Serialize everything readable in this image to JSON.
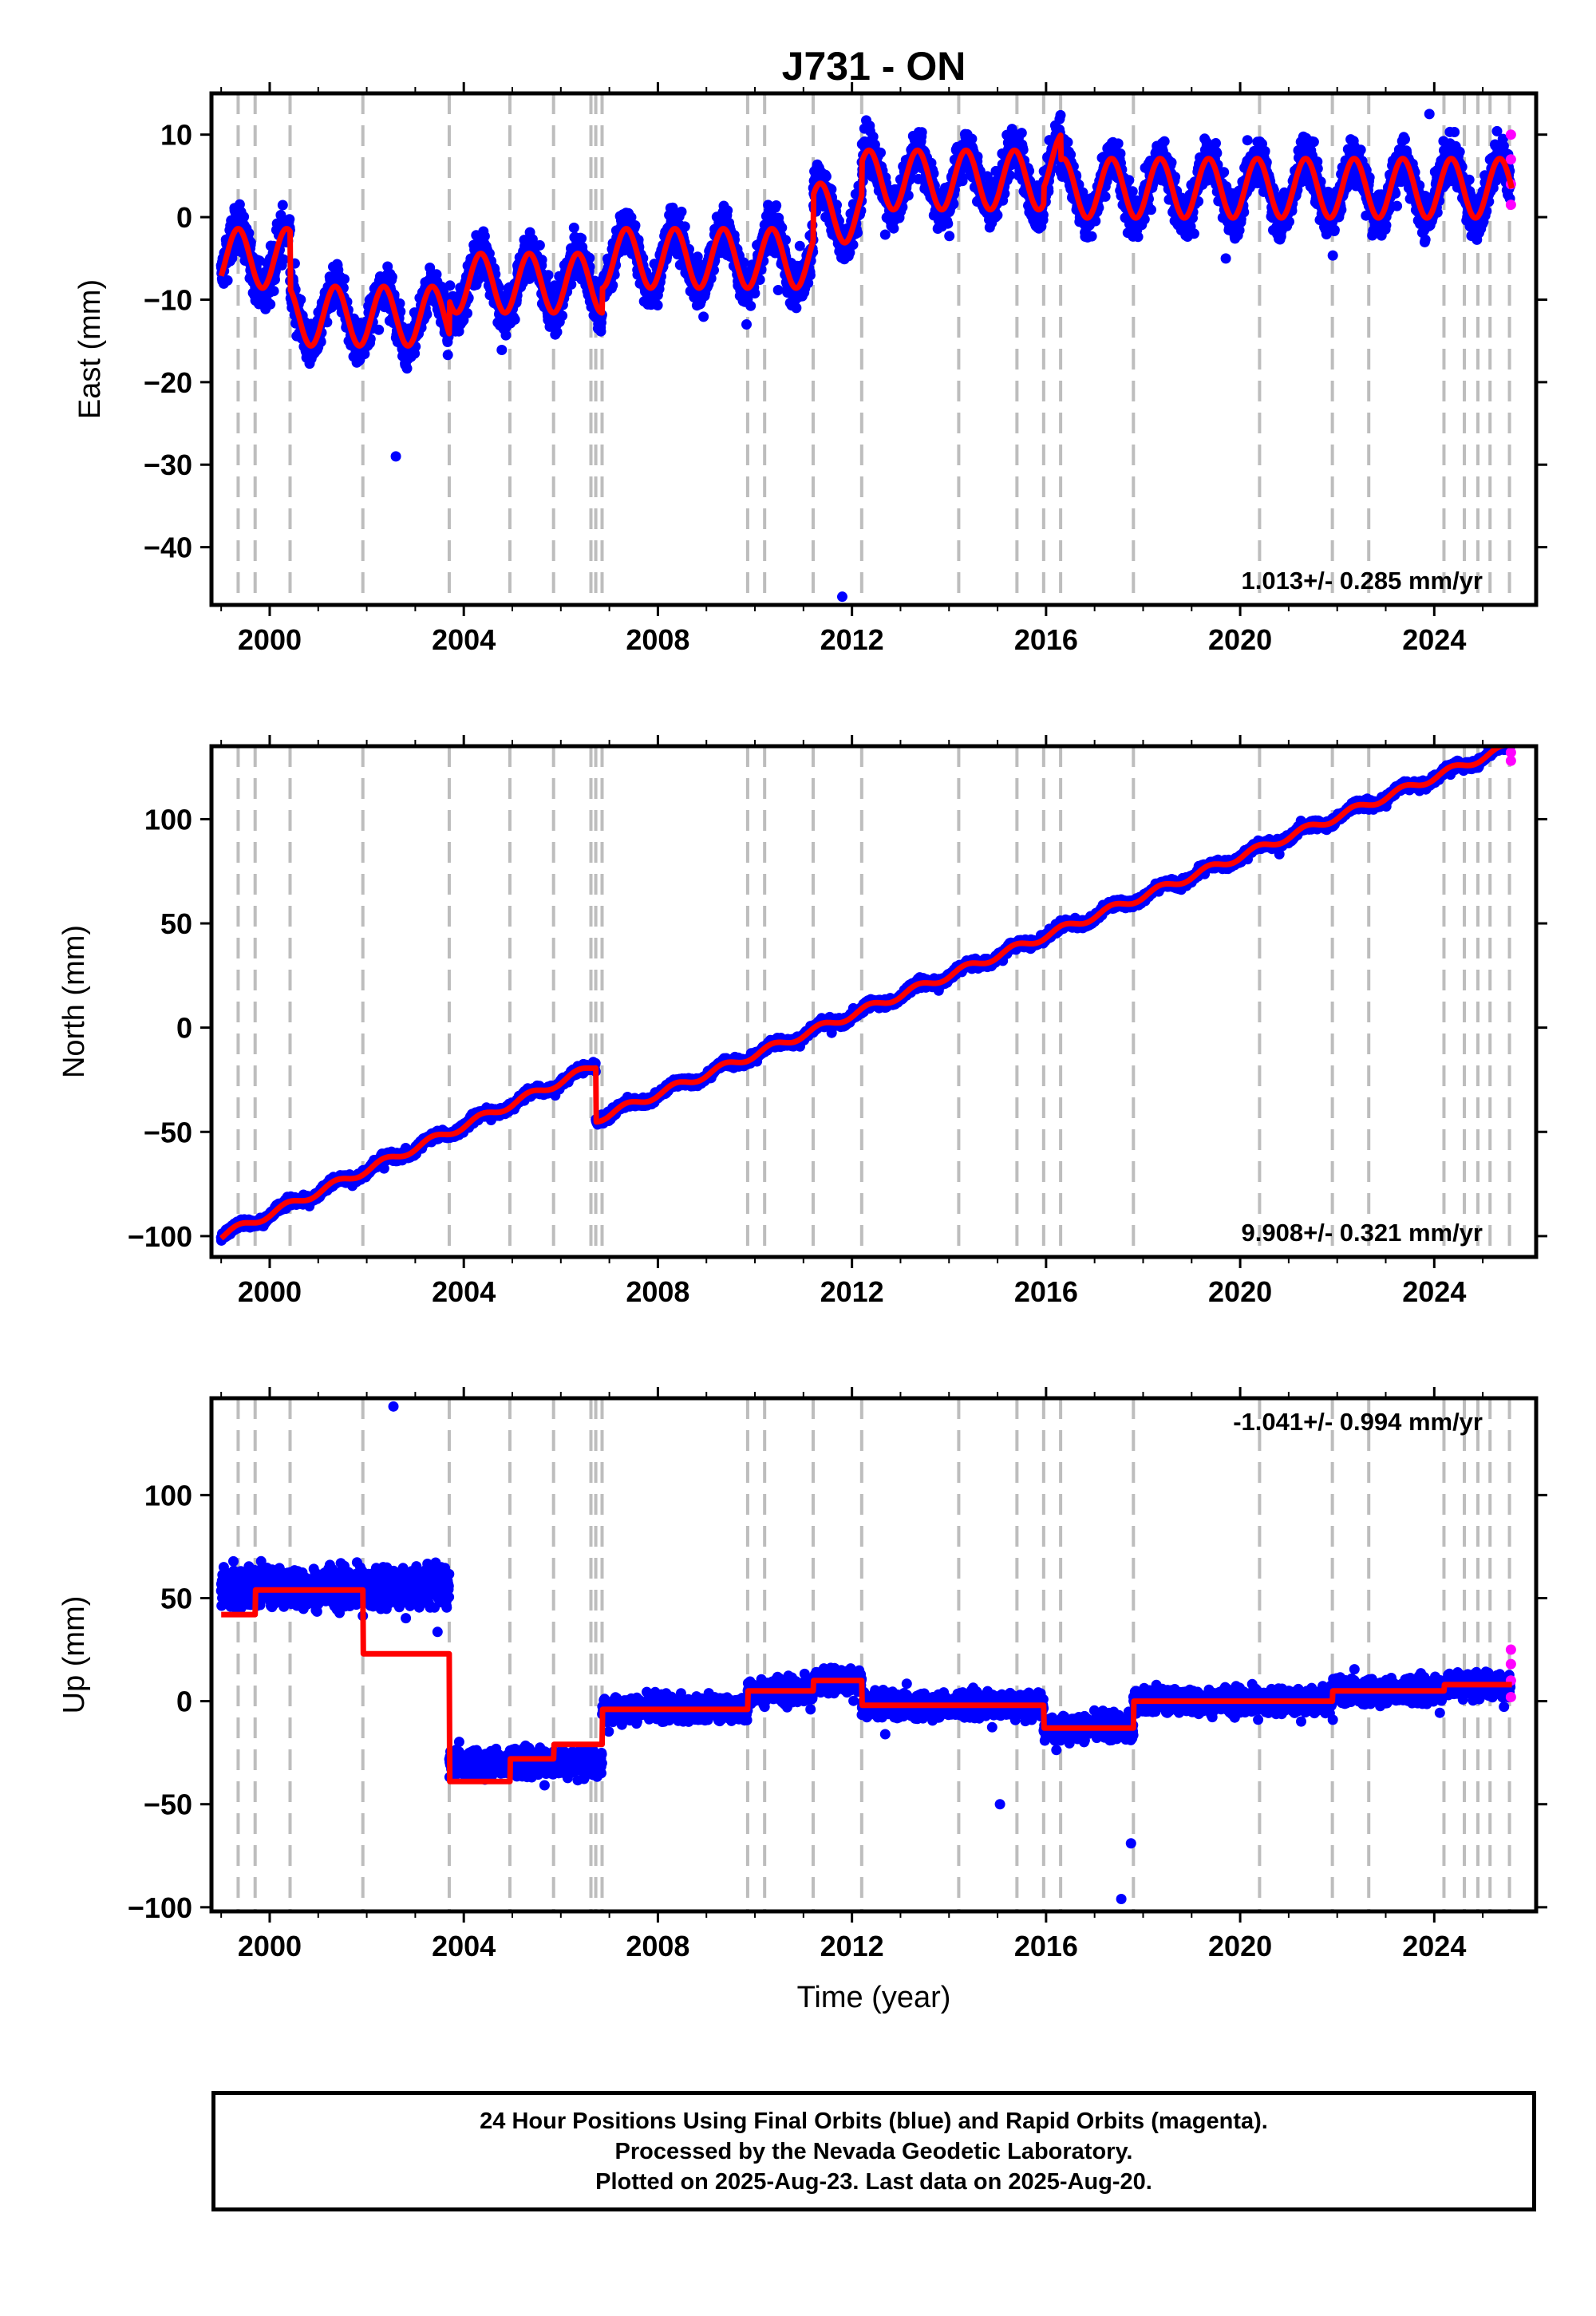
{
  "title": "J731 - ON",
  "colors": {
    "final": "#0000ff",
    "rapid": "#ff00ff",
    "model": "#ff0000",
    "steps": "#bdbdbd"
  },
  "x_axis": {
    "label": "Time (year)",
    "range": [
      1998.8,
      2026.1
    ],
    "ticks": [
      2000,
      2004,
      2008,
      2012,
      2016,
      2020,
      2024
    ],
    "tick_labels": [
      "2000",
      "2004",
      "2008",
      "2012",
      "2016",
      "2020",
      "2024"
    ]
  },
  "step_epochs": [
    1999.35,
    1999.7,
    2000.42,
    2001.92,
    2003.7,
    2004.95,
    2005.85,
    2006.62,
    2006.72,
    2006.85,
    2009.85,
    2010.2,
    2011.2,
    2012.2,
    2014.2,
    2015.4,
    2015.95,
    2016.3,
    2017.8,
    2020.4,
    2021.9,
    2022.65,
    2024.2,
    2024.62,
    2024.9,
    2025.15,
    2025.55
  ],
  "chart_data": [
    {
      "type": "scatter",
      "component": "east",
      "ylabel": "East (mm)",
      "ylim": [
        -47,
        15
      ],
      "yticks": [
        10,
        0,
        -10,
        -20,
        -30,
        -40
      ],
      "ytick_labels": [
        "10",
        "0",
        "−10",
        "−20",
        "−30",
        "−40"
      ],
      "rate_label": "1.013+/- 0.285 mm/yr",
      "model_segments": [
        {
          "start": 1999.0,
          "end": 2000.42,
          "offset": -5.0,
          "trend": 0.0
        },
        {
          "start": 2000.42,
          "end": 2003.7,
          "offset": -12.0,
          "trend": 0.0
        },
        {
          "start": 2003.7,
          "end": 2006.85,
          "offset": -8.0,
          "trend": 0.0
        },
        {
          "start": 2006.85,
          "end": 2011.2,
          "offset": -5.0,
          "trend": 0.0
        },
        {
          "start": 2011.2,
          "end": 2012.2,
          "offset": 0.5,
          "trend": 0.0
        },
        {
          "start": 2012.2,
          "end": 2015.95,
          "offset": 4.5,
          "trend": 0.0
        },
        {
          "start": 2015.95,
          "end": 2016.3,
          "offset": 6.5,
          "trend": 0.0
        },
        {
          "start": 2016.3,
          "end": 2025.65,
          "offset": 3.5,
          "trend": 0.0
        }
      ],
      "seasonal_amplitude": 3.6,
      "scatter_half_width": 4.5,
      "outliers": [
        {
          "x": 2002.6,
          "y": -29
        },
        {
          "x": 2011.8,
          "y": -46
        },
        {
          "x": 2023.9,
          "y": 12.5
        }
      ],
      "rapid_points": [
        {
          "x": 2025.58,
          "y": 10
        },
        {
          "x": 2025.58,
          "y": 7
        },
        {
          "x": 2025.58,
          "y": 4
        },
        {
          "x": 2025.58,
          "y": 1.5
        }
      ]
    },
    {
      "type": "scatter",
      "component": "north",
      "ylabel": "North (mm)",
      "ylim": [
        -110,
        135
      ],
      "yticks": [
        100,
        50,
        0,
        -50,
        -100
      ],
      "ytick_labels": [
        "100",
        "50",
        "0",
        "−50",
        "−100"
      ],
      "rate_label": "9.908+/- 0.321 mm/yr",
      "model_segments": [
        {
          "start": 1999.0,
          "end": 2006.72,
          "offset": -100.0,
          "trend": 10.6
        },
        {
          "start": 2006.72,
          "end": 2025.65,
          "offset": -44.0,
          "trend": 9.5
        }
      ],
      "seasonal_amplitude": 1.8,
      "scatter_half_width": 3.5,
      "outliers": [],
      "rapid_points": [
        {
          "x": 2025.58,
          "y": 132
        },
        {
          "x": 2025.58,
          "y": 128
        }
      ]
    },
    {
      "type": "scatter",
      "component": "up",
      "ylabel": "Up (mm)",
      "ylim": [
        -102,
        147
      ],
      "yticks": [
        100,
        50,
        0,
        -50,
        -100
      ],
      "ytick_labels": [
        "100",
        "50",
        "0",
        "−50",
        "−100"
      ],
      "rate_label": "-1.041+/- 0.994 mm/yr",
      "model_segments": [
        {
          "start": 1999.0,
          "end": 1999.7,
          "offset": 42,
          "trend": 0.0
        },
        {
          "start": 1999.7,
          "end": 2001.92,
          "offset": 54,
          "trend": 0.0
        },
        {
          "start": 2001.92,
          "end": 2003.7,
          "offset": 23,
          "trend": 0.0
        },
        {
          "start": 2003.7,
          "end": 2004.95,
          "offset": -39,
          "trend": 0.0
        },
        {
          "start": 2004.95,
          "end": 2005.85,
          "offset": -28,
          "trend": 0.0
        },
        {
          "start": 2005.85,
          "end": 2006.85,
          "offset": -21,
          "trend": 0.0
        },
        {
          "start": 2006.85,
          "end": 2009.85,
          "offset": -4,
          "trend": 0.0
        },
        {
          "start": 2009.85,
          "end": 2011.2,
          "offset": 5,
          "trend": 0.0
        },
        {
          "start": 2011.2,
          "end": 2012.2,
          "offset": 10,
          "trend": 0.0
        },
        {
          "start": 2012.2,
          "end": 2015.95,
          "offset": -2,
          "trend": 0.0
        },
        {
          "start": 2015.95,
          "end": 2017.8,
          "offset": -13,
          "trend": 0.0
        },
        {
          "start": 2017.8,
          "end": 2021.9,
          "offset": 0,
          "trend": 0.0
        },
        {
          "start": 2021.9,
          "end": 2024.2,
          "offset": 5,
          "trend": 0.0
        },
        {
          "start": 2024.2,
          "end": 2025.65,
          "offset": 8,
          "trend": 0.0
        }
      ],
      "scatter_overrides": [
        {
          "start": 1999.0,
          "end": 2003.7,
          "offset": 55,
          "half_width": 15
        },
        {
          "start": 2003.7,
          "end": 2006.85,
          "offset": -30,
          "half_width": 10
        }
      ],
      "seasonal_amplitude": 0,
      "scatter_half_width": 10,
      "outliers": [
        {
          "x": 2002.55,
          "y": 143
        },
        {
          "x": 2017.55,
          "y": -96
        },
        {
          "x": 2017.75,
          "y": -69
        },
        {
          "x": 2015.05,
          "y": -50
        }
      ],
      "rapid_points": [
        {
          "x": 2025.58,
          "y": 25
        },
        {
          "x": 2025.58,
          "y": 18
        },
        {
          "x": 2025.58,
          "y": 10
        },
        {
          "x": 2025.58,
          "y": 2
        }
      ]
    }
  ],
  "caption": [
    "24 Hour Positions Using Final Orbits (blue) and Rapid Orbits (magenta).",
    "Processed by the Nevada Geodetic Laboratory.",
    "Plotted on 2025-Aug-23. Last data on 2025-Aug-20."
  ]
}
